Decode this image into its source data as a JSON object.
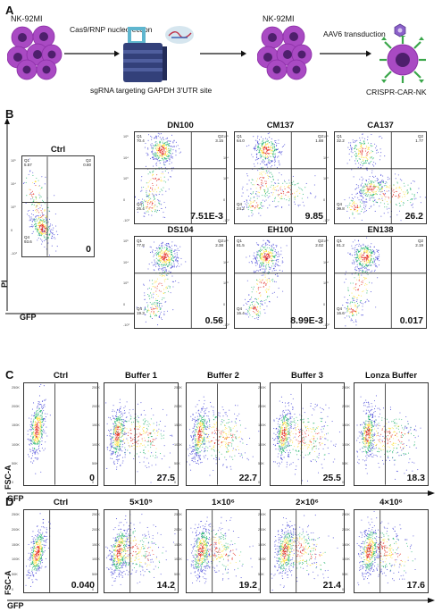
{
  "panel_a": {
    "letter": "A",
    "cells_label_left": "NK-92MI",
    "step1_label": "Cas9/RNP nucleofection",
    "sgrna_label": "sgRNA targeting GAPDH 3'UTR site",
    "cells_label_right": "NK-92MI",
    "step2_label": "AAV6 transduction",
    "product_label": "CRISPR-CAR-NK",
    "cell_color": "#a94ac3",
    "nucleus_color": "#4e1f6c"
  },
  "panel_b": {
    "letter": "B",
    "y_axis": "PI",
    "x_axis": "GFP",
    "plots": [
      {
        "title": "Ctrl",
        "value": "0",
        "q1": [
          "Q1",
          "5.57"
        ],
        "q2": [
          "Q2",
          "0.80"
        ],
        "q4": [
          "Q4",
          "93.6"
        ],
        "y_ticks": [
          "10⁵",
          "10⁴",
          "10³",
          "0",
          "-10³"
        ]
      },
      {
        "title": "DN100",
        "value": "7.51E-3",
        "q1": [
          "Q1",
          "70.4"
        ],
        "q2": [
          "Q2",
          "3.15"
        ],
        "q4": [
          "Q4",
          "26.4"
        ],
        "y_ticks": [
          "10⁵",
          "10⁴",
          "10³",
          "0",
          "-10³"
        ]
      },
      {
        "title": "CM137",
        "value": "9.85",
        "q1": [
          "Q1",
          "64.0"
        ],
        "q2": [
          "Q2",
          "1.88"
        ],
        "q4": [
          "Q4",
          "24.2"
        ],
        "y_ticks": [
          "10⁵",
          "10⁴",
          "10³",
          "0",
          "-10³"
        ]
      },
      {
        "title": "CA137",
        "value": "26.2",
        "q1": [
          "Q1",
          "32.2"
        ],
        "q2": [
          "Q2",
          "1.77"
        ],
        "q4": [
          "Q4",
          "39.8"
        ],
        "y_ticks": [
          "10⁵",
          "10⁴",
          "10³",
          "0",
          "-10³"
        ]
      },
      {
        "title": "DS104",
        "value": "0.56",
        "q1": [
          "Q1",
          "77.8"
        ],
        "q2": [
          "Q2",
          "2.38"
        ],
        "q4": [
          "Q4",
          "19.3"
        ],
        "y_ticks": [
          "10⁵",
          "10⁴",
          "10³",
          "0",
          "-10³"
        ]
      },
      {
        "title": "EH100",
        "value": "8.99E-3",
        "q1": [
          "Q1",
          "81.5"
        ],
        "q2": [
          "Q2",
          "2.02"
        ],
        "q4": [
          "Q4",
          "16.4"
        ],
        "y_ticks": [
          "10⁵",
          "10⁴",
          "10³",
          "0",
          "-10³"
        ]
      },
      {
        "title": "EN138",
        "value": "0.017",
        "q1": [
          "Q1",
          "81.2"
        ],
        "q2": [
          "Q2",
          "2.19"
        ],
        "q4": [
          "Q4",
          "16.6"
        ],
        "y_ticks": [
          "10⁵",
          "10⁴",
          "10³",
          "0",
          "-10³"
        ]
      }
    ]
  },
  "panel_c": {
    "letter": "C",
    "y_axis": "FSC-A",
    "x_axis": "GFP",
    "plots": [
      {
        "title": "Ctrl",
        "value": "0"
      },
      {
        "title": "Buffer 1",
        "value": "27.5"
      },
      {
        "title": "Buffer 2",
        "value": "22.7"
      },
      {
        "title": "Buffer 3",
        "value": "25.5"
      },
      {
        "title": "Lonza Buffer",
        "value": "18.3"
      }
    ],
    "y_ticks": [
      "250K",
      "200K",
      "150K",
      "100K",
      "50K",
      "0"
    ]
  },
  "panel_d": {
    "letter": "D",
    "y_axis": "FSC-A",
    "x_axis": "GFP",
    "plots": [
      {
        "title": "Ctrl",
        "value": "0.040"
      },
      {
        "title": "5×10⁵",
        "value": "14.2"
      },
      {
        "title": "1×10⁶",
        "value": "19.2"
      },
      {
        "title": "2×10⁶",
        "value": "21.4"
      },
      {
        "title": "4×10⁶",
        "value": "17.6"
      }
    ],
    "y_ticks": [
      "250K",
      "200K",
      "150K",
      "100K",
      "50K",
      "0"
    ]
  },
  "colors": {
    "density_low": "#3b3bd6",
    "density_mid": "#1fb36b",
    "density_high": "#ffe23a",
    "density_peak": "#e3261c",
    "gate_line": "#222222"
  }
}
